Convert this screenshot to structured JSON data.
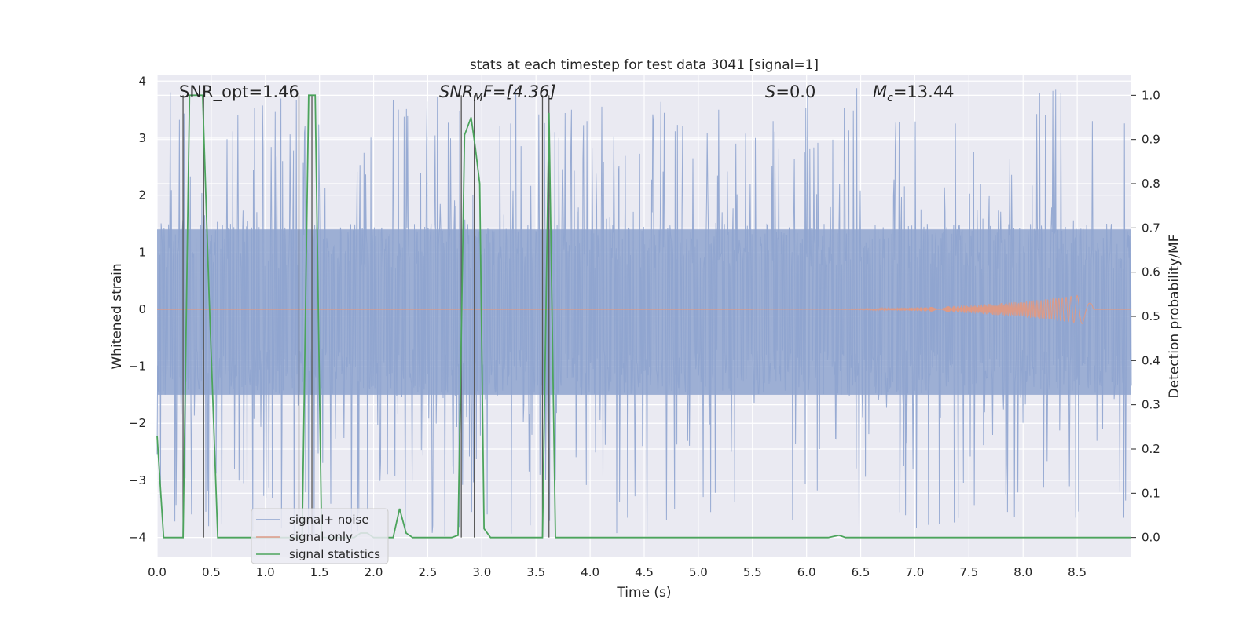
{
  "chart_data": {
    "type": "line",
    "title": "stats at each timestep for test data 3041 [signal=1]",
    "xlabel": "Time (s)",
    "ylabel": "Whitened strain",
    "ylabel_right": "Detection probability/MF",
    "xlim": [
      0,
      9.0
    ],
    "ylim": [
      -4.35,
      4.1
    ],
    "ylim_right": [
      -0.045,
      1.045
    ],
    "x_ticks": [
      "0.0",
      "0.5",
      "1.0",
      "1.5",
      "2.0",
      "2.5",
      "3.0",
      "3.5",
      "4.0",
      "4.5",
      "5.0",
      "5.5",
      "6.0",
      "6.5",
      "7.0",
      "7.5",
      "8.0",
      "8.5"
    ],
    "y_ticks": [
      "4",
      "3",
      "2",
      "1",
      "0",
      "−1",
      "−2",
      "−3",
      "−4"
    ],
    "y_ticks_right": [
      "1.0",
      "0.9",
      "0.8",
      "0.7",
      "0.6",
      "0.5",
      "0.4",
      "0.3",
      "0.2",
      "0.1",
      "0.0"
    ],
    "grid": true,
    "legend_position": "lower-left",
    "annotations": {
      "snr_opt": "SNR_opt=1.46",
      "snr_mf_sym": "SNR",
      "snr_mf_sub": "M",
      "snr_mf_rest": "F=[4.36]",
      "s_sym": "S",
      "s_rest": "=0.0",
      "mc_sym": "M",
      "mc_sub": "c",
      "mc_rest": "=13.44"
    },
    "vertical_markers_s": [
      0.24,
      0.43,
      1.31,
      1.43,
      2.81,
      2.93,
      3.56,
      3.62
    ],
    "series": [
      {
        "name": "signal+ noise",
        "color": "#8fa4cf",
        "axis": "left",
        "description_envelope": {
          "core_min": -1.5,
          "core_max": 1.4,
          "spike_max": 3.9,
          "spike_min": -4.0
        }
      },
      {
        "name": "signal only",
        "color": "#dd9a86",
        "axis": "left",
        "chirp": {
          "start_s": 5.5,
          "end_s": 8.65,
          "peak_amplitude": 0.28
        }
      },
      {
        "name": "signal statistics",
        "color": "#4ca45c",
        "axis": "right",
        "x": [
          0.0,
          0.06,
          0.12,
          0.18,
          0.24,
          0.3,
          0.36,
          0.42,
          0.48,
          0.56,
          0.62,
          0.68,
          0.74,
          0.8,
          0.86,
          0.92,
          0.98,
          1.04,
          1.1,
          1.16,
          1.22,
          1.28,
          1.34,
          1.4,
          1.46,
          1.52,
          1.58,
          1.64,
          1.7,
          1.76,
          1.82,
          1.88,
          1.94,
          2.0,
          2.06,
          2.12,
          2.18,
          2.24,
          2.3,
          2.36,
          2.42,
          2.48,
          2.54,
          2.6,
          2.66,
          2.72,
          2.78,
          2.84,
          2.9,
          2.94,
          2.98,
          3.02,
          3.08,
          3.14,
          3.2,
          3.26,
          3.32,
          3.38,
          3.44,
          3.5,
          3.56,
          3.62,
          3.68,
          3.74,
          3.8,
          4.0,
          5.0,
          6.0,
          6.2,
          6.3,
          6.36,
          6.5,
          7.0,
          8.0,
          9.0
        ],
        "values": [
          0.23,
          0.0,
          0.0,
          0.0,
          0.0,
          1.0,
          1.0,
          1.0,
          0.55,
          0.0,
          0.0,
          0.0,
          0.0,
          0.0,
          0.0,
          0.0,
          0.0,
          0.0,
          0.0,
          0.0,
          0.0,
          0.0,
          0.0,
          1.0,
          1.0,
          0.0,
          0.0,
          0.0,
          0.0,
          0.0,
          0.0,
          0.01,
          0.01,
          0.0,
          0.0,
          0.0,
          0.0,
          0.065,
          0.01,
          0.0,
          0.0,
          0.0,
          0.0,
          0.0,
          0.0,
          0.0,
          0.005,
          0.91,
          0.95,
          0.88,
          0.8,
          0.02,
          0.0,
          0.0,
          0.0,
          0.0,
          0.0,
          0.0,
          0.0,
          0.0,
          0.0,
          0.96,
          0.0,
          0.0,
          0.0,
          0.0,
          0.0,
          0.0,
          0.0,
          0.005,
          0.0,
          0.0,
          0.0,
          0.0,
          0.0
        ]
      }
    ]
  }
}
